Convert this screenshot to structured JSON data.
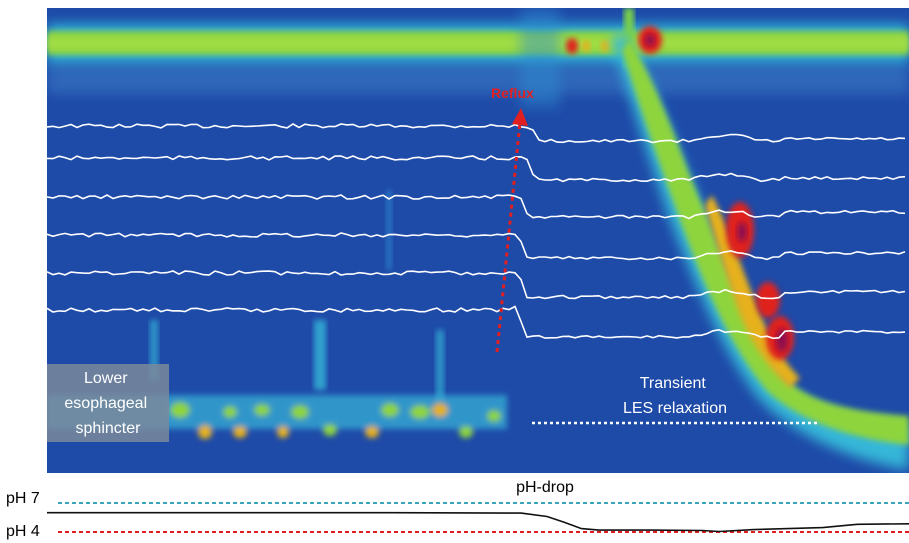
{
  "chart_data": {
    "type": "heatmap",
    "title": "",
    "xlabel": "",
    "ylabel": "",
    "grid": false,
    "annotations": {
      "reflux": "Reflux",
      "les": [
        "Lower",
        "esophageal",
        "sphincter"
      ],
      "tlesr": [
        "Transient",
        "LES relaxation"
      ],
      "ph_drop": "pH-drop"
    },
    "ph_levels": [
      {
        "label": "pH 7",
        "value": 7,
        "color": "#3aa6b9"
      },
      {
        "label": "pH 4",
        "value": 4,
        "color": "#e02020"
      }
    ],
    "ph_trace": {
      "x": [
        0,
        0.2,
        0.4,
        0.55,
        0.58,
        0.6,
        0.62,
        0.64,
        0.7,
        0.76,
        0.78,
        0.82,
        0.86,
        0.9,
        0.94,
        1.0
      ],
      "y": [
        6.0,
        6.0,
        6.0,
        5.95,
        5.6,
        5.0,
        4.35,
        4.2,
        4.2,
        4.15,
        4.05,
        4.25,
        4.35,
        4.45,
        4.8,
        4.85
      ]
    },
    "colors": {
      "background": "#1e4aa8",
      "sphincter_band": "#8ed43c",
      "hot": "#e0241b",
      "very_hot": "#8e1050",
      "trace": "#ffffff",
      "reflux_arrow": "#e02020",
      "relaxation_line": "#ffffff",
      "ph_line": "#111111",
      "label_box": "#7a8a9c"
    }
  }
}
